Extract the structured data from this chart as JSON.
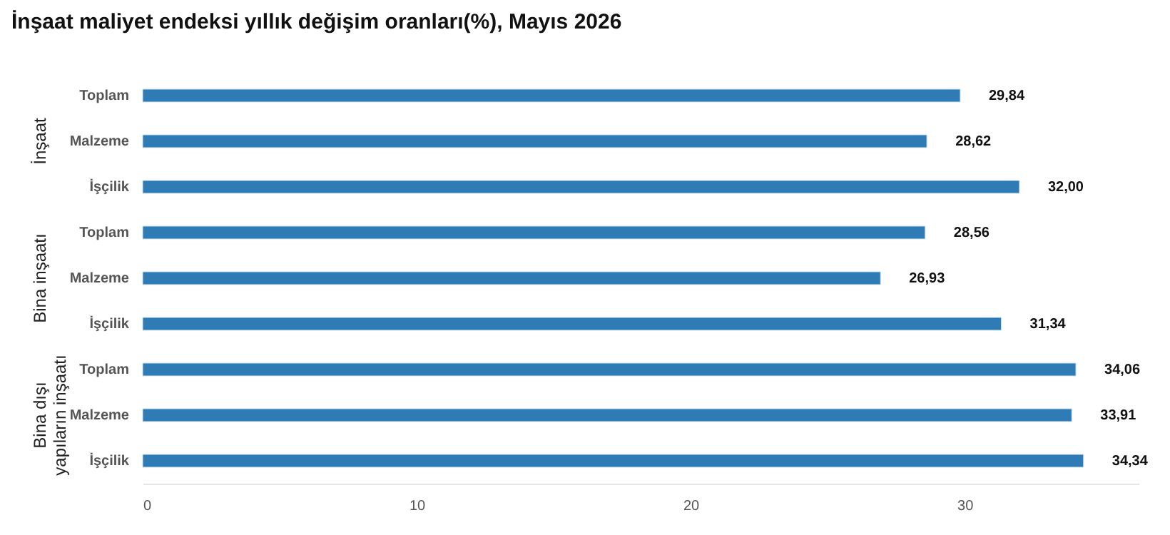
{
  "chart_data": {
    "type": "bar",
    "orientation": "horizontal",
    "title": "İnşaat maliyet endeksi yıllık değişim oranları(%), Mayıs 2026",
    "categories": [
      "Toplam",
      "Malzeme",
      "İşçilik",
      "Toplam",
      "Malzeme",
      "İşçilik",
      "Toplam",
      "Malzeme",
      "İşçilik"
    ],
    "values": [
      29.84,
      28.62,
      32.0,
      28.56,
      26.93,
      31.34,
      34.06,
      33.91,
      34.34
    ],
    "value_labels": [
      "29,84",
      "28,62",
      "32,00",
      "28,56",
      "26,93",
      "31,34",
      "34,06",
      "33,91",
      "34,34"
    ],
    "color": "#2e7bb6",
    "annotations": [
      "İnşaat",
      "Bina inşaatı",
      "Bina dışı yapıların inşaatı"
    ],
    "xlim": [
      0,
      36.35
    ],
    "xticks": [
      0,
      10,
      20,
      30
    ]
  }
}
